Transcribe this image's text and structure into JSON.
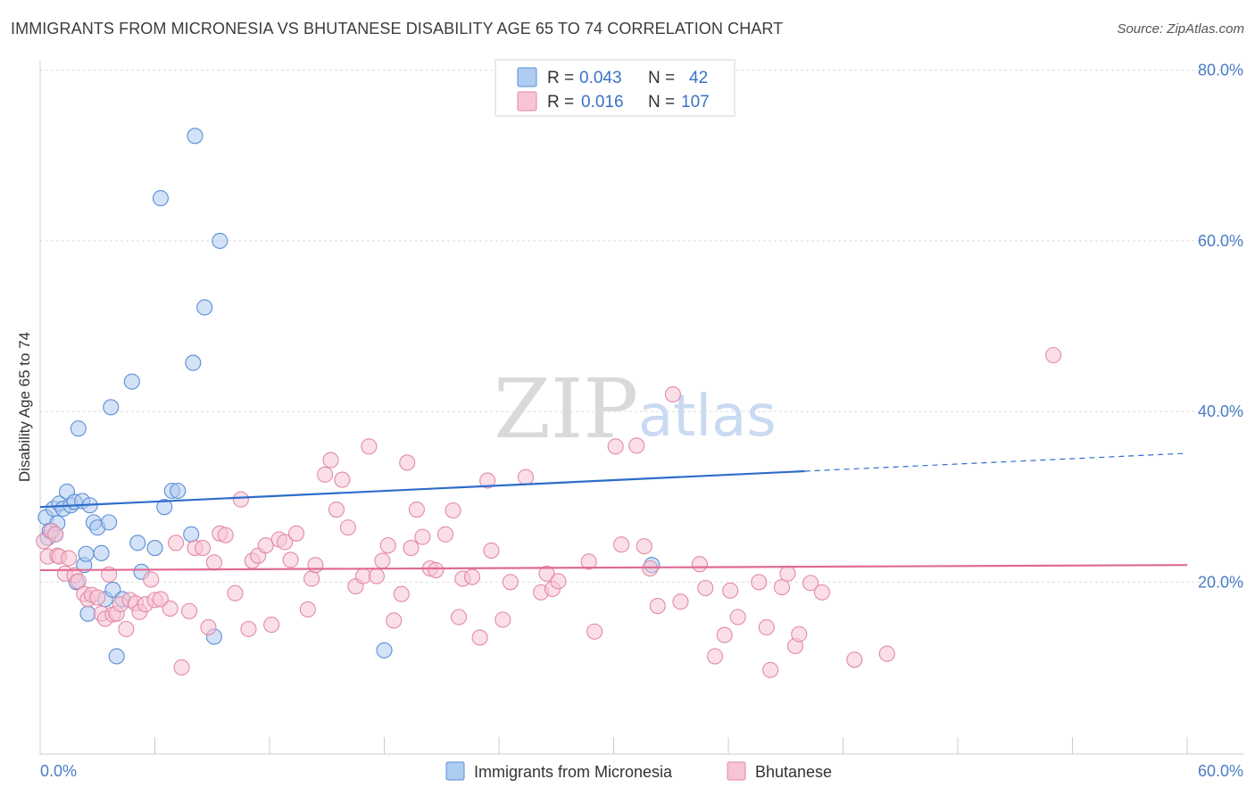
{
  "header": {
    "title": "IMMIGRANTS FROM MICRONESIA VS BHUTANESE DISABILITY AGE 65 TO 74 CORRELATION CHART",
    "source": "Source: ZipAtlas.com"
  },
  "watermark": {
    "zip": "ZIP",
    "atlas": "atlas"
  },
  "legend": {
    "rows": [
      {
        "r_label": "R =",
        "r_value": "0.043",
        "n_label": "N =",
        "n_value": "42",
        "color": "#aecbf0",
        "stroke": "#5b8fd6"
      },
      {
        "r_label": "R =",
        "r_value": "0.016",
        "n_label": "N =",
        "n_value": "107",
        "color": "#f7c4d4",
        "stroke": "#e28aa7"
      }
    ]
  },
  "bottom_legend": [
    {
      "label": "Immigrants from Micronesia",
      "color": "#aecbf0",
      "stroke": "#5b8fd6"
    },
    {
      "label": "Bhutanese",
      "color": "#f7c4d4",
      "stroke": "#e28aa7"
    }
  ],
  "chart_data": {
    "type": "scatter",
    "ylabel": "Disability Age 65 to 74",
    "xlim": [
      0,
      60
    ],
    "ylim": [
      0,
      85
    ],
    "x_tick_labels": [
      {
        "value": 0,
        "label": "0.0%"
      },
      {
        "value": 60,
        "label": "60.0%"
      }
    ],
    "y_tick_labels": [
      {
        "value": 80,
        "label": "80.0%"
      },
      {
        "value": 60,
        "label": "60.0%"
      },
      {
        "value": 40,
        "label": "40.0%"
      },
      {
        "value": 20,
        "label": "20.0%"
      }
    ],
    "grid": true,
    "series": [
      {
        "name": "Immigrants from Micronesia",
        "color": "#aecbf0",
        "stroke": "#5b8fd6",
        "trend": {
          "x": [
            0,
            40
          ],
          "y": [
            28.8,
            33.0
          ],
          "dashed_to": [
            60,
            35.1
          ],
          "color": "#2d6cc9"
        },
        "points": [
          [
            0.3,
            27.6
          ],
          [
            0.4,
            25.2
          ],
          [
            0.5,
            26.0
          ],
          [
            0.7,
            28.6
          ],
          [
            0.8,
            25.6
          ],
          [
            0.9,
            26.9
          ],
          [
            1.0,
            29.2
          ],
          [
            1.2,
            28.6
          ],
          [
            1.4,
            30.6
          ],
          [
            1.6,
            29.0
          ],
          [
            1.8,
            29.4
          ],
          [
            1.9,
            20.0
          ],
          [
            2.0,
            38.0
          ],
          [
            2.2,
            29.5
          ],
          [
            2.3,
            22.0
          ],
          [
            2.4,
            23.3
          ],
          [
            2.5,
            16.3
          ],
          [
            2.6,
            29.0
          ],
          [
            2.8,
            27.0
          ],
          [
            3.0,
            26.4
          ],
          [
            3.2,
            23.4
          ],
          [
            3.4,
            18.0
          ],
          [
            3.6,
            27.0
          ],
          [
            3.7,
            40.5
          ],
          [
            3.8,
            19.1
          ],
          [
            4.0,
            11.3
          ],
          [
            4.3,
            18.0
          ],
          [
            4.8,
            43.5
          ],
          [
            5.1,
            24.6
          ],
          [
            5.3,
            21.2
          ],
          [
            6.0,
            24.0
          ],
          [
            6.3,
            65.0
          ],
          [
            6.5,
            28.8
          ],
          [
            6.9,
            30.7
          ],
          [
            7.2,
            30.7
          ],
          [
            7.9,
            25.6
          ],
          [
            8.0,
            45.7
          ],
          [
            8.1,
            72.3
          ],
          [
            8.6,
            52.2
          ],
          [
            9.1,
            13.6
          ],
          [
            9.4,
            60.0
          ],
          [
            18.0,
            12.0
          ],
          [
            32.0,
            22.0
          ]
        ]
      },
      {
        "name": "Bhutanese",
        "color": "#f7c4d4",
        "stroke": "#e28aa7",
        "trend": {
          "x": [
            0,
            60
          ],
          "y": [
            21.4,
            22.0
          ],
          "color": "#e06a94"
        },
        "points": [
          [
            0.2,
            24.8
          ],
          [
            0.4,
            23.0
          ],
          [
            0.6,
            26.0
          ],
          [
            0.8,
            25.6
          ],
          [
            0.9,
            23.1
          ],
          [
            1.0,
            23.0
          ],
          [
            1.3,
            21.0
          ],
          [
            1.5,
            22.8
          ],
          [
            1.8,
            20.8
          ],
          [
            2.0,
            20.1
          ],
          [
            2.3,
            18.6
          ],
          [
            2.5,
            18.0
          ],
          [
            2.7,
            18.5
          ],
          [
            3.0,
            18.2
          ],
          [
            3.2,
            16.3
          ],
          [
            3.4,
            15.7
          ],
          [
            3.6,
            20.9
          ],
          [
            3.8,
            16.2
          ],
          [
            4.0,
            16.3
          ],
          [
            4.2,
            17.4
          ],
          [
            4.5,
            14.5
          ],
          [
            4.7,
            17.9
          ],
          [
            5.0,
            17.5
          ],
          [
            5.2,
            16.5
          ],
          [
            5.5,
            17.4
          ],
          [
            5.8,
            20.3
          ],
          [
            6.0,
            17.9
          ],
          [
            6.3,
            18.0
          ],
          [
            6.8,
            16.9
          ],
          [
            7.1,
            24.6
          ],
          [
            7.4,
            10.0
          ],
          [
            7.8,
            16.6
          ],
          [
            8.1,
            24.0
          ],
          [
            8.5,
            24.0
          ],
          [
            8.8,
            14.7
          ],
          [
            9.1,
            22.3
          ],
          [
            9.4,
            25.7
          ],
          [
            9.7,
            25.5
          ],
          [
            10.2,
            18.7
          ],
          [
            10.5,
            29.7
          ],
          [
            10.9,
            14.5
          ],
          [
            11.1,
            22.5
          ],
          [
            11.4,
            23.1
          ],
          [
            11.8,
            24.3
          ],
          [
            12.1,
            15.0
          ],
          [
            12.5,
            25.0
          ],
          [
            12.8,
            24.7
          ],
          [
            13.1,
            22.6
          ],
          [
            13.4,
            25.7
          ],
          [
            14.0,
            16.8
          ],
          [
            14.2,
            20.4
          ],
          [
            14.4,
            22.0
          ],
          [
            14.9,
            32.6
          ],
          [
            15.2,
            34.3
          ],
          [
            15.5,
            28.5
          ],
          [
            15.8,
            32.0
          ],
          [
            16.1,
            26.4
          ],
          [
            16.5,
            19.5
          ],
          [
            16.9,
            20.7
          ],
          [
            17.2,
            35.9
          ],
          [
            17.6,
            20.7
          ],
          [
            17.9,
            22.5
          ],
          [
            18.2,
            24.3
          ],
          [
            18.5,
            15.5
          ],
          [
            18.9,
            18.6
          ],
          [
            19.2,
            34.0
          ],
          [
            19.4,
            24.0
          ],
          [
            19.7,
            28.5
          ],
          [
            20.0,
            25.3
          ],
          [
            20.4,
            21.6
          ],
          [
            20.7,
            21.4
          ],
          [
            21.2,
            25.6
          ],
          [
            21.6,
            28.4
          ],
          [
            21.9,
            15.9
          ],
          [
            22.1,
            20.4
          ],
          [
            22.6,
            20.6
          ],
          [
            23.0,
            13.5
          ],
          [
            23.4,
            31.9
          ],
          [
            23.6,
            23.7
          ],
          [
            24.2,
            15.6
          ],
          [
            24.6,
            20.0
          ],
          [
            25.4,
            32.3
          ],
          [
            26.2,
            18.8
          ],
          [
            26.5,
            21.0
          ],
          [
            26.8,
            19.2
          ],
          [
            27.1,
            20.1
          ],
          [
            28.7,
            22.4
          ],
          [
            29.0,
            14.2
          ],
          [
            30.1,
            35.9
          ],
          [
            30.4,
            24.4
          ],
          [
            31.2,
            36.0
          ],
          [
            31.6,
            24.2
          ],
          [
            31.9,
            21.6
          ],
          [
            32.3,
            17.2
          ],
          [
            33.1,
            42.0
          ],
          [
            33.5,
            17.7
          ],
          [
            34.5,
            22.1
          ],
          [
            34.8,
            19.3
          ],
          [
            35.3,
            11.3
          ],
          [
            35.8,
            13.8
          ],
          [
            36.1,
            19.0
          ],
          [
            36.5,
            15.9
          ],
          [
            37.6,
            20.0
          ],
          [
            38.0,
            14.7
          ],
          [
            38.2,
            9.7
          ],
          [
            38.8,
            19.4
          ],
          [
            39.1,
            21.0
          ],
          [
            39.5,
            12.5
          ],
          [
            39.7,
            13.9
          ],
          [
            40.3,
            19.9
          ],
          [
            40.9,
            18.8
          ],
          [
            42.6,
            10.9
          ],
          [
            44.3,
            11.6
          ],
          [
            53.0,
            46.6
          ]
        ]
      }
    ]
  }
}
